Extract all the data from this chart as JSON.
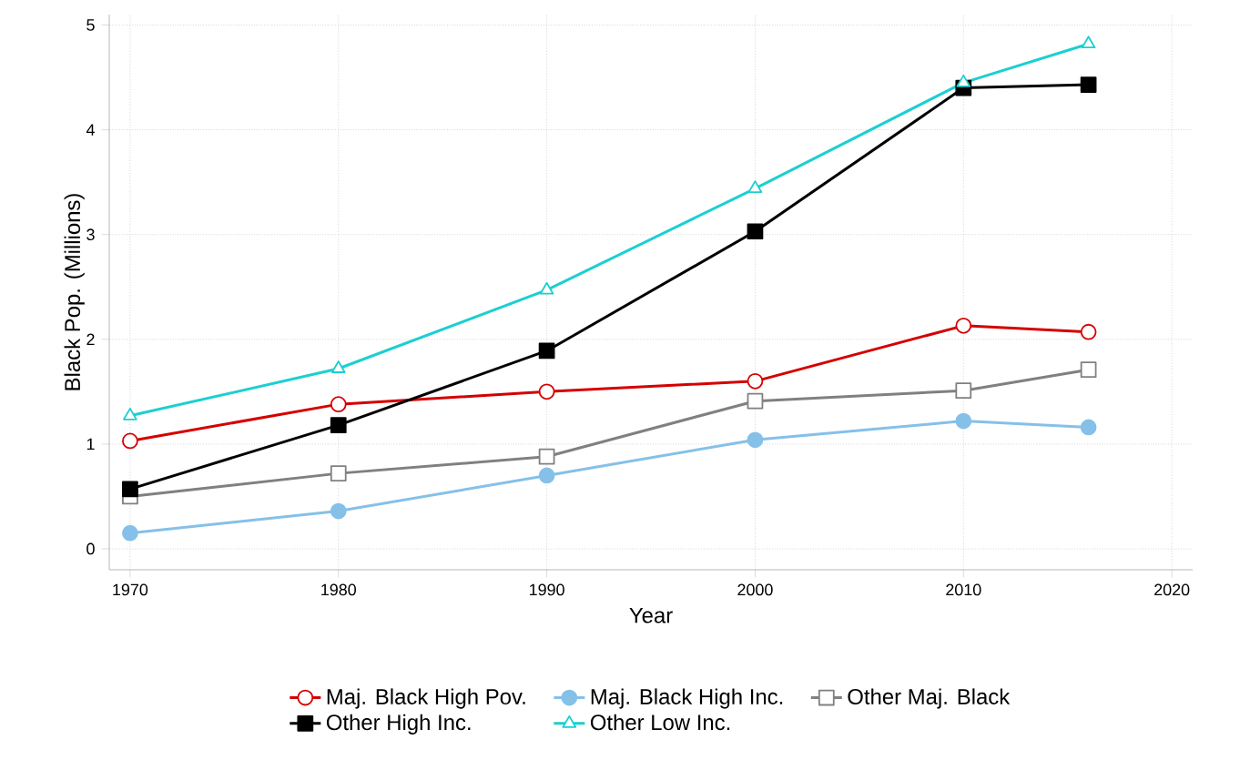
{
  "chart_data": {
    "type": "line",
    "xlabel": "Year",
    "ylabel": "Black Pop. (Millions)",
    "x": [
      1970,
      1980,
      1990,
      2000,
      2010,
      2016
    ],
    "series": [
      {
        "name": "Maj. Black High Pov.",
        "color": "#d40000",
        "marker": "circle",
        "values": [
          1.03,
          1.38,
          1.5,
          1.6,
          2.13,
          2.07
        ]
      },
      {
        "name": "Maj. Black High Inc.",
        "color": "#85c0e9",
        "marker": "circle",
        "values": [
          0.15,
          0.36,
          0.7,
          1.04,
          1.22,
          1.16
        ]
      },
      {
        "name": "Other Maj. Black",
        "color": "#808080",
        "marker": "square",
        "values": [
          0.5,
          0.72,
          0.88,
          1.41,
          1.51,
          1.71
        ]
      },
      {
        "name": "Other High Inc.",
        "color": "#000000",
        "marker": "square",
        "values": [
          0.57,
          1.18,
          1.89,
          3.03,
          4.4,
          4.43
        ]
      },
      {
        "name": "Other Low Inc.",
        "color": "#1ccfd1",
        "marker": "triangle",
        "values": [
          1.27,
          1.72,
          2.47,
          3.44,
          4.45,
          4.82
        ]
      }
    ],
    "xlim": [
      1969,
      2021
    ],
    "ylim": [
      -0.2,
      5.1
    ],
    "xticks": [
      1970,
      1980,
      1990,
      2000,
      2010,
      2020
    ],
    "yticks": [
      0,
      1,
      2,
      3,
      4,
      5
    ],
    "grid": true,
    "legend": "bottom"
  }
}
